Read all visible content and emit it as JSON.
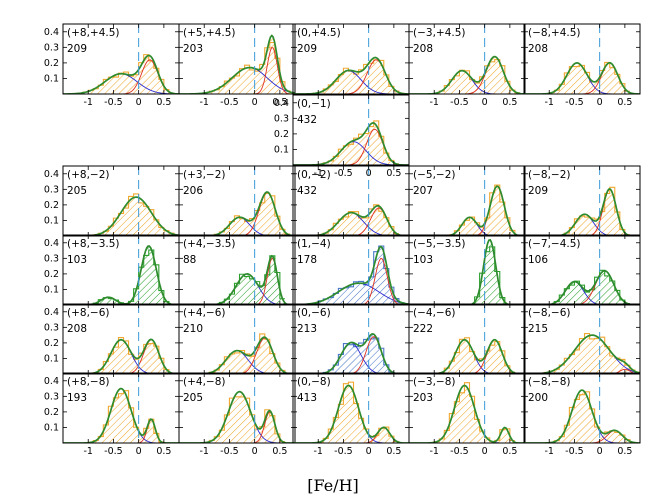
{
  "chart_data": {
    "type": "panel-grid-histogram",
    "xlabel": "[Fe/H]",
    "xlim": [
      -1.5,
      0.8
    ],
    "ylim": [
      0,
      0.45
    ],
    "xticks": [
      "-1",
      "-0.5",
      "0",
      "0.5"
    ],
    "yticks": [
      "0.1",
      "0.2",
      "0.3",
      "0.4"
    ],
    "dashed_reference_x": 0,
    "colors": {
      "hist_orange": "#f0a830",
      "hist_green": "#2ca02c",
      "hist_blue": "#4a78c8",
      "fit_total": "#2e8b2e",
      "fit_metal_rich": "#e03020",
      "fit_metal_poor": "#2a2ad0",
      "dashed_line": "#3a9ad9"
    },
    "panels": [
      {
        "row": 0,
        "col": 0,
        "label": "(+8,+4.5)",
        "n": "209",
        "hist": "orange",
        "comps": [
          {
            "mu": -0.35,
            "s": 0.32,
            "a": 0.13
          },
          {
            "mu": 0.22,
            "s": 0.16,
            "a": 0.22
          }
        ]
      },
      {
        "row": 0,
        "col": 1,
        "label": "(+5,+4.5)",
        "n": "203",
        "hist": "orange",
        "comps": [
          {
            "mu": -0.1,
            "s": 0.35,
            "a": 0.17
          },
          {
            "mu": 0.35,
            "s": 0.1,
            "a": 0.3
          }
        ]
      },
      {
        "row": 0,
        "col": 2,
        "label": "(0,+4.5)",
        "n": "209",
        "hist": "orange",
        "comps": [
          {
            "mu": -0.4,
            "s": 0.25,
            "a": 0.15
          },
          {
            "mu": 0.15,
            "s": 0.18,
            "a": 0.22
          }
        ]
      },
      {
        "row": 0,
        "col": 3,
        "label": "(−3,+4.5)",
        "n": "208",
        "hist": "orange",
        "comps": [
          {
            "mu": -0.45,
            "s": 0.2,
            "a": 0.15
          },
          {
            "mu": 0.2,
            "s": 0.17,
            "a": 0.24
          }
        ]
      },
      {
        "row": 0,
        "col": 4,
        "label": "(−8,+4.5)",
        "n": "208",
        "hist": "orange",
        "comps": [
          {
            "mu": -0.45,
            "s": 0.2,
            "a": 0.2
          },
          {
            "mu": 0.2,
            "s": 0.16,
            "a": 0.2
          }
        ]
      },
      {
        "row": 1,
        "col": 2,
        "label": "(0,−1)",
        "n": "432",
        "hist": "orange",
        "comps": [
          {
            "mu": -0.3,
            "s": 0.25,
            "a": 0.15
          },
          {
            "mu": 0.12,
            "s": 0.16,
            "a": 0.23
          }
        ]
      },
      {
        "row": 2,
        "col": 0,
        "label": "(+8,−2)",
        "n": "205",
        "hist": "orange",
        "comps": [
          {
            "mu": -0.05,
            "s": 0.3,
            "a": 0.25
          }
        ]
      },
      {
        "row": 2,
        "col": 1,
        "label": "(+3,−2)",
        "n": "206",
        "hist": "orange",
        "comps": [
          {
            "mu": -0.3,
            "s": 0.2,
            "a": 0.12
          },
          {
            "mu": 0.25,
            "s": 0.16,
            "a": 0.28
          }
        ]
      },
      {
        "row": 2,
        "col": 2,
        "label": "(0,−2)",
        "n": "432",
        "hist": "orange",
        "comps": [
          {
            "mu": -0.35,
            "s": 0.25,
            "a": 0.15
          },
          {
            "mu": 0.2,
            "s": 0.16,
            "a": 0.18
          }
        ]
      },
      {
        "row": 2,
        "col": 3,
        "label": "(−5,−2)",
        "n": "207",
        "hist": "orange",
        "comps": [
          {
            "mu": -0.3,
            "s": 0.15,
            "a": 0.12
          },
          {
            "mu": 0.25,
            "s": 0.14,
            "a": 0.32
          }
        ]
      },
      {
        "row": 2,
        "col": 4,
        "label": "(−8,−2)",
        "n": "209",
        "hist": "orange",
        "comps": [
          {
            "mu": -0.3,
            "s": 0.18,
            "a": 0.14
          },
          {
            "mu": 0.2,
            "s": 0.13,
            "a": 0.3
          }
        ]
      },
      {
        "row": 3,
        "col": 0,
        "label": "(+8,−3.5)",
        "n": "103",
        "hist": "green",
        "comps": [
          {
            "mu": -0.6,
            "s": 0.15,
            "a": 0.05
          },
          {
            "mu": 0.2,
            "s": 0.15,
            "a": 0.38
          }
        ]
      },
      {
        "row": 3,
        "col": 1,
        "label": "(+4,−3.5)",
        "n": "88",
        "hist": "green",
        "comps": [
          {
            "mu": -0.15,
            "s": 0.22,
            "a": 0.2
          },
          {
            "mu": 0.35,
            "s": 0.1,
            "a": 0.3
          }
        ]
      },
      {
        "row": 3,
        "col": 2,
        "label": "(1,−4)",
        "n": "178",
        "hist": "blue",
        "comps": [
          {
            "mu": -0.2,
            "s": 0.4,
            "a": 0.14
          },
          {
            "mu": 0.25,
            "s": 0.12,
            "a": 0.3
          }
        ]
      },
      {
        "row": 3,
        "col": 3,
        "label": "(−5,−3.5)",
        "n": "103",
        "hist": "green",
        "comps": [
          {
            "mu": 0.1,
            "s": 0.12,
            "a": 0.42
          }
        ]
      },
      {
        "row": 3,
        "col": 4,
        "label": "(−7,−4.5)",
        "n": "106",
        "hist": "green",
        "comps": [
          {
            "mu": -0.5,
            "s": 0.18,
            "a": 0.15
          },
          {
            "mu": 0.1,
            "s": 0.18,
            "a": 0.22
          }
        ]
      },
      {
        "row": 4,
        "col": 0,
        "label": "(+8,−6)",
        "n": "208",
        "hist": "orange",
        "comps": [
          {
            "mu": -0.35,
            "s": 0.2,
            "a": 0.22
          },
          {
            "mu": 0.25,
            "s": 0.15,
            "a": 0.22
          }
        ]
      },
      {
        "row": 4,
        "col": 1,
        "label": "(+4,−6)",
        "n": "210",
        "hist": "orange",
        "comps": [
          {
            "mu": -0.35,
            "s": 0.22,
            "a": 0.15
          },
          {
            "mu": 0.2,
            "s": 0.16,
            "a": 0.23
          }
        ]
      },
      {
        "row": 4,
        "col": 2,
        "label": "(0,−6)",
        "n": "213",
        "hist": "blue",
        "comps": [
          {
            "mu": -0.35,
            "s": 0.2,
            "a": 0.2
          },
          {
            "mu": 0.1,
            "s": 0.15,
            "a": 0.24
          }
        ]
      },
      {
        "row": 4,
        "col": 3,
        "label": "(−4,−6)",
        "n": "222",
        "hist": "orange",
        "comps": [
          {
            "mu": -0.4,
            "s": 0.18,
            "a": 0.22
          },
          {
            "mu": 0.2,
            "s": 0.15,
            "a": 0.22
          }
        ]
      },
      {
        "row": 4,
        "col": 4,
        "label": "(−8,−6)",
        "n": "215",
        "hist": "orange",
        "comps": [
          {
            "mu": -0.15,
            "s": 0.35,
            "a": 0.25
          },
          {
            "mu": 0.5,
            "s": 0.1,
            "a": 0.03
          }
        ]
      },
      {
        "row": 5,
        "col": 0,
        "label": "(+8,−8)",
        "n": "193",
        "hist": "orange",
        "comps": [
          {
            "mu": -0.35,
            "s": 0.2,
            "a": 0.35
          },
          {
            "mu": 0.25,
            "s": 0.08,
            "a": 0.15
          }
        ]
      },
      {
        "row": 5,
        "col": 1,
        "label": "(+4,−8)",
        "n": "205",
        "hist": "orange",
        "comps": [
          {
            "mu": -0.3,
            "s": 0.22,
            "a": 0.33
          },
          {
            "mu": 0.3,
            "s": 0.1,
            "a": 0.2
          }
        ]
      },
      {
        "row": 5,
        "col": 2,
        "label": "(0,−8)",
        "n": "413",
        "hist": "orange",
        "comps": [
          {
            "mu": -0.4,
            "s": 0.2,
            "a": 0.37
          },
          {
            "mu": 0.3,
            "s": 0.12,
            "a": 0.1
          }
        ]
      },
      {
        "row": 5,
        "col": 3,
        "label": "(−3,−8)",
        "n": "203",
        "hist": "orange",
        "comps": [
          {
            "mu": -0.4,
            "s": 0.2,
            "a": 0.37
          },
          {
            "mu": 0.4,
            "s": 0.08,
            "a": 0.1
          }
        ]
      },
      {
        "row": 5,
        "col": 4,
        "label": "(−8,−8)",
        "n": "200",
        "hist": "orange",
        "comps": [
          {
            "mu": -0.35,
            "s": 0.2,
            "a": 0.34
          },
          {
            "mu": 0.3,
            "s": 0.15,
            "a": 0.08
          }
        ]
      }
    ]
  }
}
